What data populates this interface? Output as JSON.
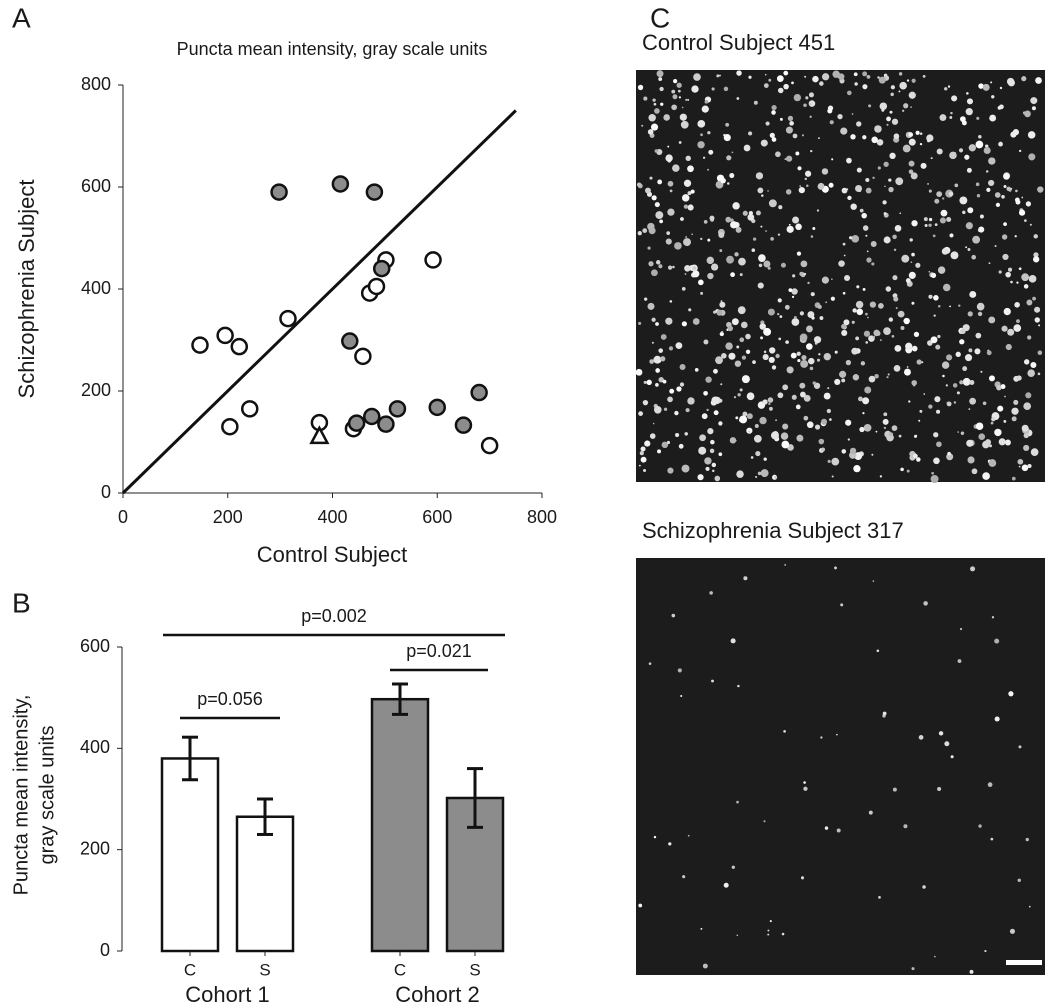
{
  "chart_data": [
    {
      "type": "scatter",
      "panel_label": "A",
      "title": "Puncta mean intensity, gray scale units",
      "x_label": "Control Subject",
      "y_label": "Schizophrenia Subject",
      "xlim": [
        0,
        800
      ],
      "ylim": [
        0,
        800
      ],
      "xticks": [
        0,
        200,
        400,
        600,
        800
      ],
      "yticks": [
        0,
        200,
        400,
        600,
        800
      ],
      "reference_line": {
        "x": [
          0,
          750
        ],
        "y": [
          0,
          750
        ]
      },
      "series": [
        {
          "color": "#ffffff",
          "marker": "circle",
          "x": [
            147,
            195,
            222,
            315,
            204,
            242,
            375,
            440,
            458,
            471,
            484,
            502,
            592,
            700
          ],
          "y": [
            290,
            309,
            287,
            342,
            130,
            165,
            138,
            126,
            268,
            392,
            405,
            457,
            457,
            93
          ]
        },
        {
          "color": "#8c8c8c",
          "marker": "circle",
          "x": [
            298,
            415,
            480,
            433,
            494,
            446,
            475,
            502,
            524,
            600,
            650,
            680
          ],
          "y": [
            590,
            606,
            590,
            298,
            440,
            137,
            150,
            135,
            165,
            168,
            133,
            197
          ]
        },
        {
          "color": "#ffffff",
          "marker": "triangle",
          "x": [
            375
          ],
          "y": [
            110
          ]
        }
      ]
    },
    {
      "type": "bar",
      "panel_label": "B",
      "y_label": [
        "Puncta mean intensity,",
        "gray scale units"
      ],
      "groups": [
        "Cohort 1",
        "Cohort 2"
      ],
      "categories": [
        "C",
        "S",
        "C",
        "S"
      ],
      "values": [
        380,
        265,
        497,
        302
      ],
      "errors": [
        42,
        35,
        30,
        58
      ],
      "colors": [
        "#ffffff",
        "#ffffff",
        "#8c8c8c",
        "#8c8c8c"
      ],
      "ylim": [
        0,
        600
      ],
      "yticks": [
        0,
        200,
        400,
        600
      ],
      "annotations": [
        "p=0.056",
        "p=0.021",
        "p=0.002"
      ]
    }
  ],
  "images": {
    "panel_label": "C",
    "titles": [
      "Control Subject 451",
      "Schizophrenia Subject 317"
    ]
  }
}
